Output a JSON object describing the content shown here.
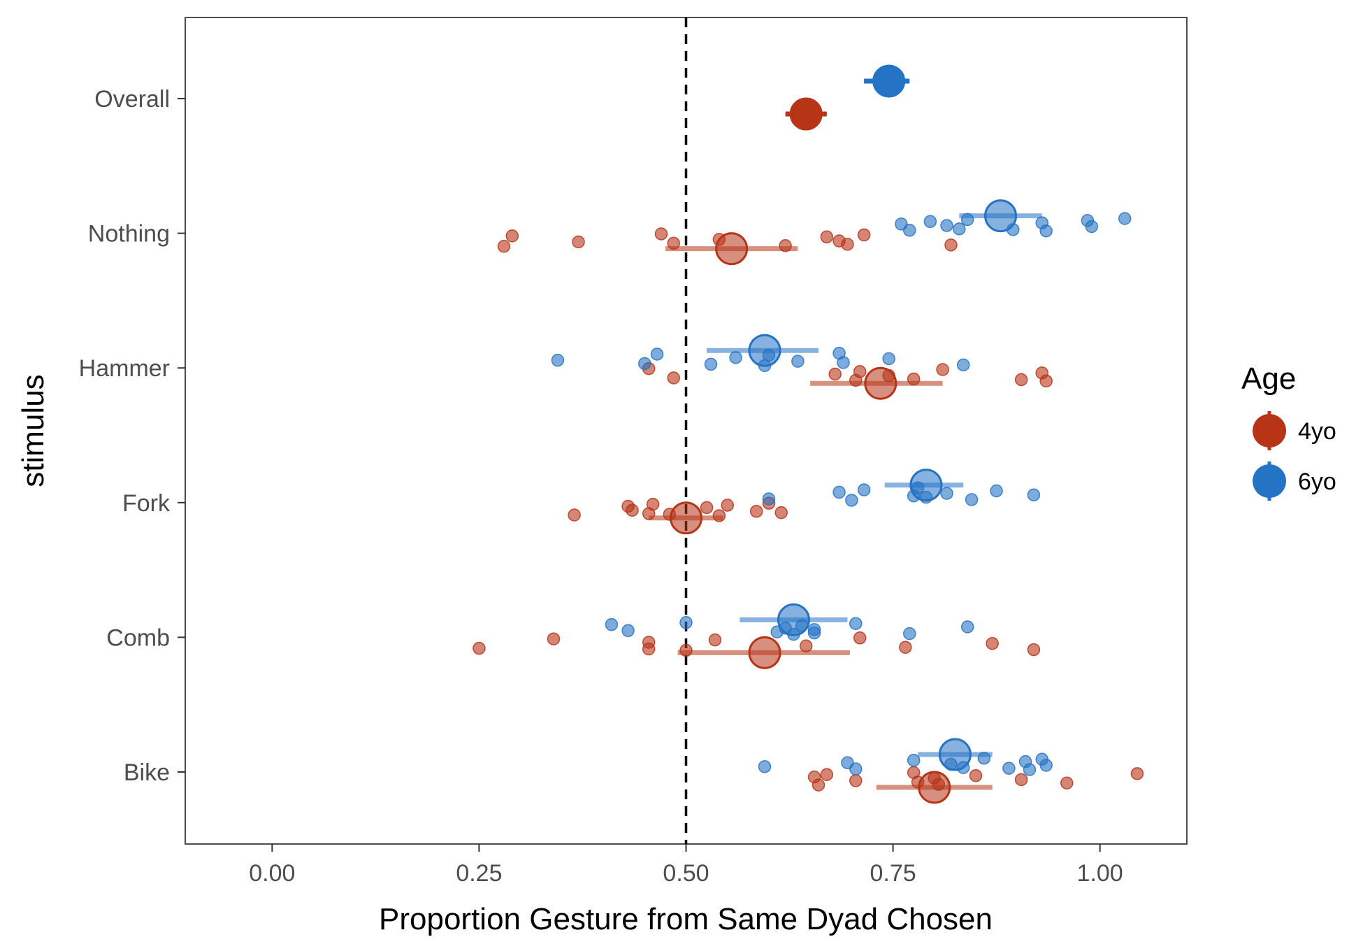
{
  "chart_data": {
    "type": "scatter",
    "xlabel": "Proportion Gesture from Same Dyad Chosen",
    "ylabel": "stimulus",
    "xlim": [
      -0.105,
      1.105
    ],
    "x_ticks": [
      "0.00",
      "0.25",
      "0.50",
      "0.75",
      "1.00"
    ],
    "x_tick_values": [
      0,
      0.25,
      0.5,
      0.75,
      1.0
    ],
    "categories": [
      "Overall",
      "Nothing",
      "Hammer",
      "Fork",
      "Comb",
      "Bike"
    ],
    "reference_line": 0.5,
    "grid": false,
    "legend": {
      "title": "Age",
      "position": "right",
      "entries": [
        {
          "label": "4yo",
          "color": "#B73417"
        },
        {
          "label": "6yo",
          "color": "#2473C4"
        }
      ]
    },
    "series": [
      {
        "name": "4yo",
        "color": "#B73417",
        "summary": [
          {
            "stimulus": "Overall",
            "mean": 0.645,
            "lo": 0.62,
            "hi": 0.67
          },
          {
            "stimulus": "Nothing",
            "mean": 0.555,
            "lo": 0.475,
            "hi": 0.635
          },
          {
            "stimulus": "Hammer",
            "mean": 0.735,
            "lo": 0.65,
            "hi": 0.81
          },
          {
            "stimulus": "Fork",
            "mean": 0.5,
            "lo": 0.455,
            "hi": 0.545
          },
          {
            "stimulus": "Comb",
            "mean": 0.595,
            "lo": 0.49,
            "hi": 0.698
          },
          {
            "stimulus": "Bike",
            "mean": 0.8,
            "lo": 0.73,
            "hi": 0.87
          }
        ],
        "points": {
          "Nothing": [
            0.28,
            0.29,
            0.37,
            0.47,
            0.485,
            0.54,
            0.62,
            0.67,
            0.685,
            0.695,
            0.715,
            0.82
          ],
          "Hammer": [
            0.455,
            0.485,
            0.68,
            0.705,
            0.71,
            0.745,
            0.775,
            0.81,
            0.905,
            0.93,
            0.935
          ],
          "Fork": [
            0.365,
            0.43,
            0.435,
            0.455,
            0.46,
            0.48,
            0.525,
            0.54,
            0.55,
            0.585,
            0.6,
            0.615
          ],
          "Comb": [
            0.25,
            0.34,
            0.455,
            0.455,
            0.5,
            0.535,
            0.645,
            0.71,
            0.765,
            0.87,
            0.92
          ],
          "Bike": [
            0.655,
            0.66,
            0.67,
            0.705,
            0.775,
            0.78,
            0.8,
            0.805,
            0.85,
            0.905,
            0.96,
            1.045
          ]
        }
      },
      {
        "name": "6yo",
        "color": "#2473C4",
        "summary": [
          {
            "stimulus": "Overall",
            "mean": 0.745,
            "lo": 0.715,
            "hi": 0.77
          },
          {
            "stimulus": "Nothing",
            "mean": 0.88,
            "lo": 0.83,
            "hi": 0.93
          },
          {
            "stimulus": "Hammer",
            "mean": 0.595,
            "lo": 0.525,
            "hi": 0.66
          },
          {
            "stimulus": "Fork",
            "mean": 0.79,
            "lo": 0.74,
            "hi": 0.835
          },
          {
            "stimulus": "Comb",
            "mean": 0.63,
            "lo": 0.565,
            "hi": 0.695
          },
          {
            "stimulus": "Bike",
            "mean": 0.825,
            "lo": 0.78,
            "hi": 0.87
          }
        ],
        "points": {
          "Nothing": [
            0.76,
            0.77,
            0.795,
            0.815,
            0.83,
            0.84,
            0.895,
            0.93,
            0.935,
            0.985,
            0.99,
            1.03
          ],
          "Hammer": [
            0.345,
            0.45,
            0.465,
            0.53,
            0.56,
            0.595,
            0.6,
            0.635,
            0.685,
            0.69,
            0.745,
            0.835
          ],
          "Fork": [
            0.6,
            0.685,
            0.7,
            0.715,
            0.775,
            0.78,
            0.79,
            0.815,
            0.845,
            0.875,
            0.92
          ],
          "Comb": [
            0.41,
            0.43,
            0.5,
            0.61,
            0.62,
            0.63,
            0.64,
            0.655,
            0.655,
            0.705,
            0.77,
            0.84
          ],
          "Bike": [
            0.595,
            0.695,
            0.705,
            0.775,
            0.82,
            0.835,
            0.86,
            0.89,
            0.91,
            0.915,
            0.93,
            0.935
          ]
        }
      }
    ]
  }
}
